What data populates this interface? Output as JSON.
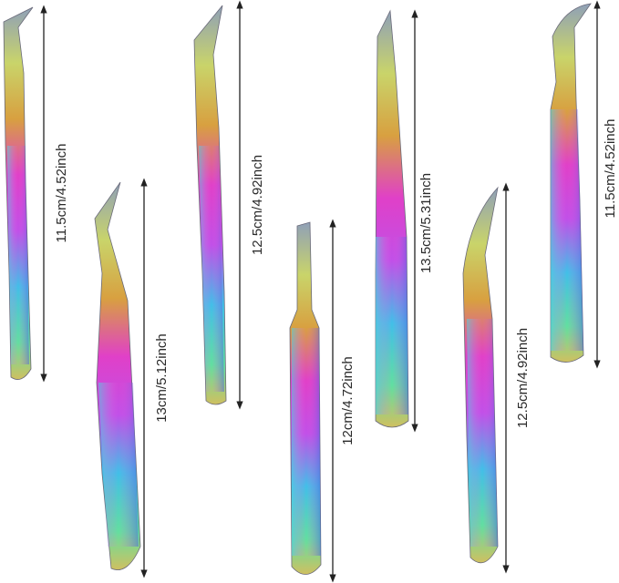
{
  "labels": [
    "11.5cm/4.52inch",
    "13cm/5.12inch",
    "12.5cm/4.92inch",
    "12cm/4.72inch",
    "13.5cm/5.31inch",
    "12.5cm/4.92inch",
    "11.5cm/4.52inch"
  ]
}
